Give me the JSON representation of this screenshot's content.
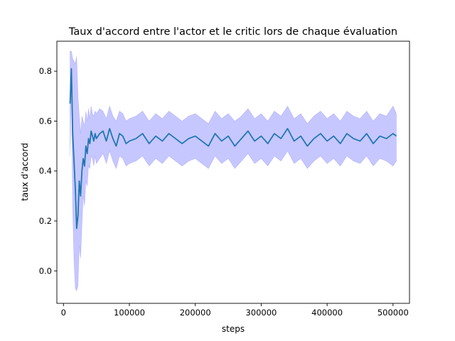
{
  "chart_data": {
    "type": "line",
    "title": "Taux d'accord entre l'actor et le critic lors de chaque évaluation",
    "xlabel": "steps",
    "ylabel": "taux d'accord",
    "xlim": [
      -10000,
      525000
    ],
    "ylim": [
      -0.13,
      0.92
    ],
    "xticks": [
      0,
      100000,
      200000,
      300000,
      400000,
      500000
    ],
    "xtick_labels": [
      "0",
      "100000",
      "200000",
      "300000",
      "400000",
      "500000"
    ],
    "yticks": [
      0.0,
      0.2,
      0.4,
      0.6,
      0.8
    ],
    "ytick_labels": [
      "0.0",
      "0.2",
      "0.4",
      "0.6",
      "0.8"
    ],
    "grid": false,
    "series": [
      {
        "color": "#1f77b4",
        "band_color": "#0000ff",
        "band_alpha": 0.22,
        "x": [
          10000,
          12000,
          14000,
          16000,
          18000,
          20000,
          22000,
          24000,
          26000,
          28000,
          30000,
          32000,
          34000,
          36000,
          38000,
          40000,
          42000,
          44000,
          46000,
          48000,
          50000,
          55000,
          60000,
          65000,
          70000,
          75000,
          80000,
          85000,
          90000,
          95000,
          100000,
          110000,
          120000,
          130000,
          140000,
          150000,
          160000,
          170000,
          180000,
          190000,
          200000,
          210000,
          220000,
          230000,
          240000,
          250000,
          260000,
          270000,
          280000,
          290000,
          300000,
          310000,
          320000,
          330000,
          340000,
          350000,
          360000,
          370000,
          380000,
          390000,
          400000,
          410000,
          420000,
          430000,
          440000,
          450000,
          460000,
          470000,
          480000,
          490000,
          500000,
          505000
        ],
        "mean": [
          0.67,
          0.81,
          0.55,
          0.44,
          0.33,
          0.17,
          0.22,
          0.36,
          0.3,
          0.4,
          0.45,
          0.42,
          0.5,
          0.47,
          0.53,
          0.51,
          0.56,
          0.54,
          0.52,
          0.55,
          0.53,
          0.55,
          0.56,
          0.52,
          0.57,
          0.53,
          0.5,
          0.55,
          0.54,
          0.51,
          0.52,
          0.53,
          0.55,
          0.51,
          0.54,
          0.52,
          0.55,
          0.53,
          0.51,
          0.53,
          0.54,
          0.52,
          0.5,
          0.55,
          0.52,
          0.54,
          0.5,
          0.53,
          0.56,
          0.52,
          0.54,
          0.51,
          0.55,
          0.53,
          0.57,
          0.52,
          0.54,
          0.5,
          0.53,
          0.55,
          0.52,
          0.54,
          0.51,
          0.55,
          0.53,
          0.52,
          0.55,
          0.51,
          0.54,
          0.53,
          0.55,
          0.54
        ],
        "upper": [
          0.88,
          0.88,
          0.85,
          0.84,
          0.83,
          0.86,
          0.7,
          0.62,
          0.55,
          0.62,
          0.6,
          0.58,
          0.64,
          0.6,
          0.65,
          0.61,
          0.66,
          0.63,
          0.62,
          0.64,
          0.63,
          0.65,
          0.64,
          0.61,
          0.66,
          0.62,
          0.6,
          0.64,
          0.63,
          0.6,
          0.61,
          0.62,
          0.64,
          0.6,
          0.63,
          0.61,
          0.64,
          0.62,
          0.6,
          0.62,
          0.63,
          0.61,
          0.59,
          0.64,
          0.61,
          0.63,
          0.6,
          0.62,
          0.65,
          0.61,
          0.63,
          0.6,
          0.64,
          0.62,
          0.66,
          0.61,
          0.63,
          0.59,
          0.62,
          0.64,
          0.61,
          0.63,
          0.6,
          0.64,
          0.62,
          0.61,
          0.64,
          0.6,
          0.63,
          0.62,
          0.66,
          0.63
        ],
        "lower": [
          0.46,
          0.74,
          0.25,
          0.04,
          -0.07,
          -0.08,
          -0.06,
          0.1,
          0.05,
          0.18,
          0.3,
          0.26,
          0.36,
          0.34,
          0.42,
          0.41,
          0.46,
          0.45,
          0.42,
          0.46,
          0.43,
          0.45,
          0.47,
          0.43,
          0.48,
          0.44,
          0.41,
          0.46,
          0.45,
          0.42,
          0.43,
          0.44,
          0.46,
          0.42,
          0.45,
          0.43,
          0.46,
          0.44,
          0.42,
          0.44,
          0.45,
          0.43,
          0.41,
          0.46,
          0.43,
          0.45,
          0.41,
          0.44,
          0.47,
          0.43,
          0.45,
          0.42,
          0.46,
          0.44,
          0.48,
          0.43,
          0.45,
          0.41,
          0.44,
          0.46,
          0.43,
          0.45,
          0.42,
          0.46,
          0.44,
          0.43,
          0.46,
          0.42,
          0.45,
          0.44,
          0.42,
          0.44
        ]
      }
    ]
  }
}
